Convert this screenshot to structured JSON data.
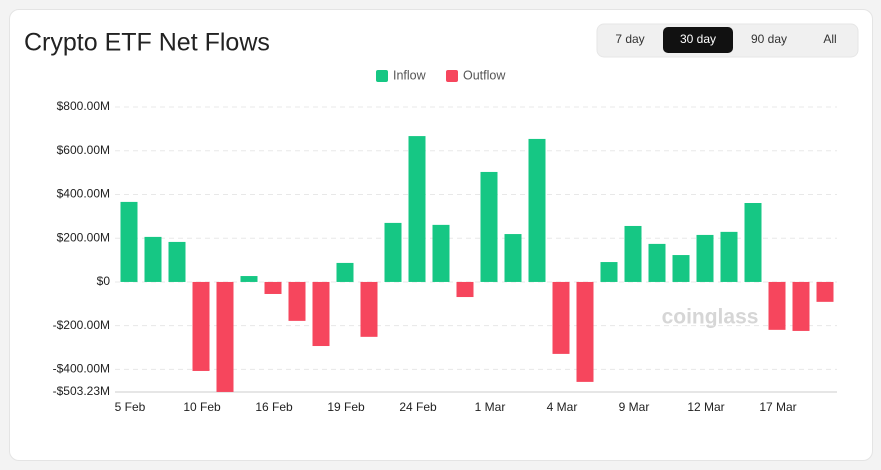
{
  "chart_data": {
    "type": "bar",
    "title": "Crypto ETF Net Flows",
    "buttons": [
      "7 day",
      "30 day",
      "90 day",
      "All"
    ],
    "selected_button": 1,
    "watermark": "coinglass",
    "categories": [
      "5 Feb",
      null,
      null,
      "10 Feb",
      null,
      null,
      "16 Feb",
      null,
      null,
      "19 Feb",
      null,
      null,
      "24 Feb",
      null,
      null,
      "1 Mar",
      null,
      null,
      "4 Mar",
      null,
      null,
      "9 Mar",
      null,
      null,
      "12 Mar",
      null,
      null,
      "17 Mar",
      null,
      null
    ],
    "series": [
      {
        "name": "Inflow",
        "color": "#16c784",
        "values": [
          366,
          206,
          183,
          null,
          null,
          27,
          null,
          null,
          null,
          87,
          null,
          270,
          667,
          261,
          null,
          503,
          219,
          654,
          null,
          null,
          91,
          256,
          174,
          123,
          215,
          229,
          361,
          null,
          null,
          null
        ]
      },
      {
        "name": "Outflow",
        "color": "#f6465d",
        "values": [
          null,
          null,
          null,
          -407,
          -503,
          null,
          -55,
          -178,
          -293,
          null,
          -251,
          null,
          null,
          null,
          -69,
          null,
          null,
          null,
          -329,
          -457,
          null,
          null,
          null,
          null,
          null,
          null,
          null,
          -219,
          -224,
          -91
        ]
      }
    ],
    "ylim": [
      -503.23,
      800
    ],
    "yticks": [
      {
        "value": 800,
        "label": "$800.00M"
      },
      {
        "value": 600,
        "label": "$600.00M"
      },
      {
        "value": 400,
        "label": "$400.00M"
      },
      {
        "value": 200,
        "label": "$200.00M"
      },
      {
        "value": 0,
        "label": "$0"
      },
      {
        "value": -200,
        "label": "-$200.00M"
      },
      {
        "value": -400,
        "label": "-$400.00M"
      },
      {
        "value": -503.23,
        "label": "-$503.23M"
      }
    ],
    "grid": true
  }
}
